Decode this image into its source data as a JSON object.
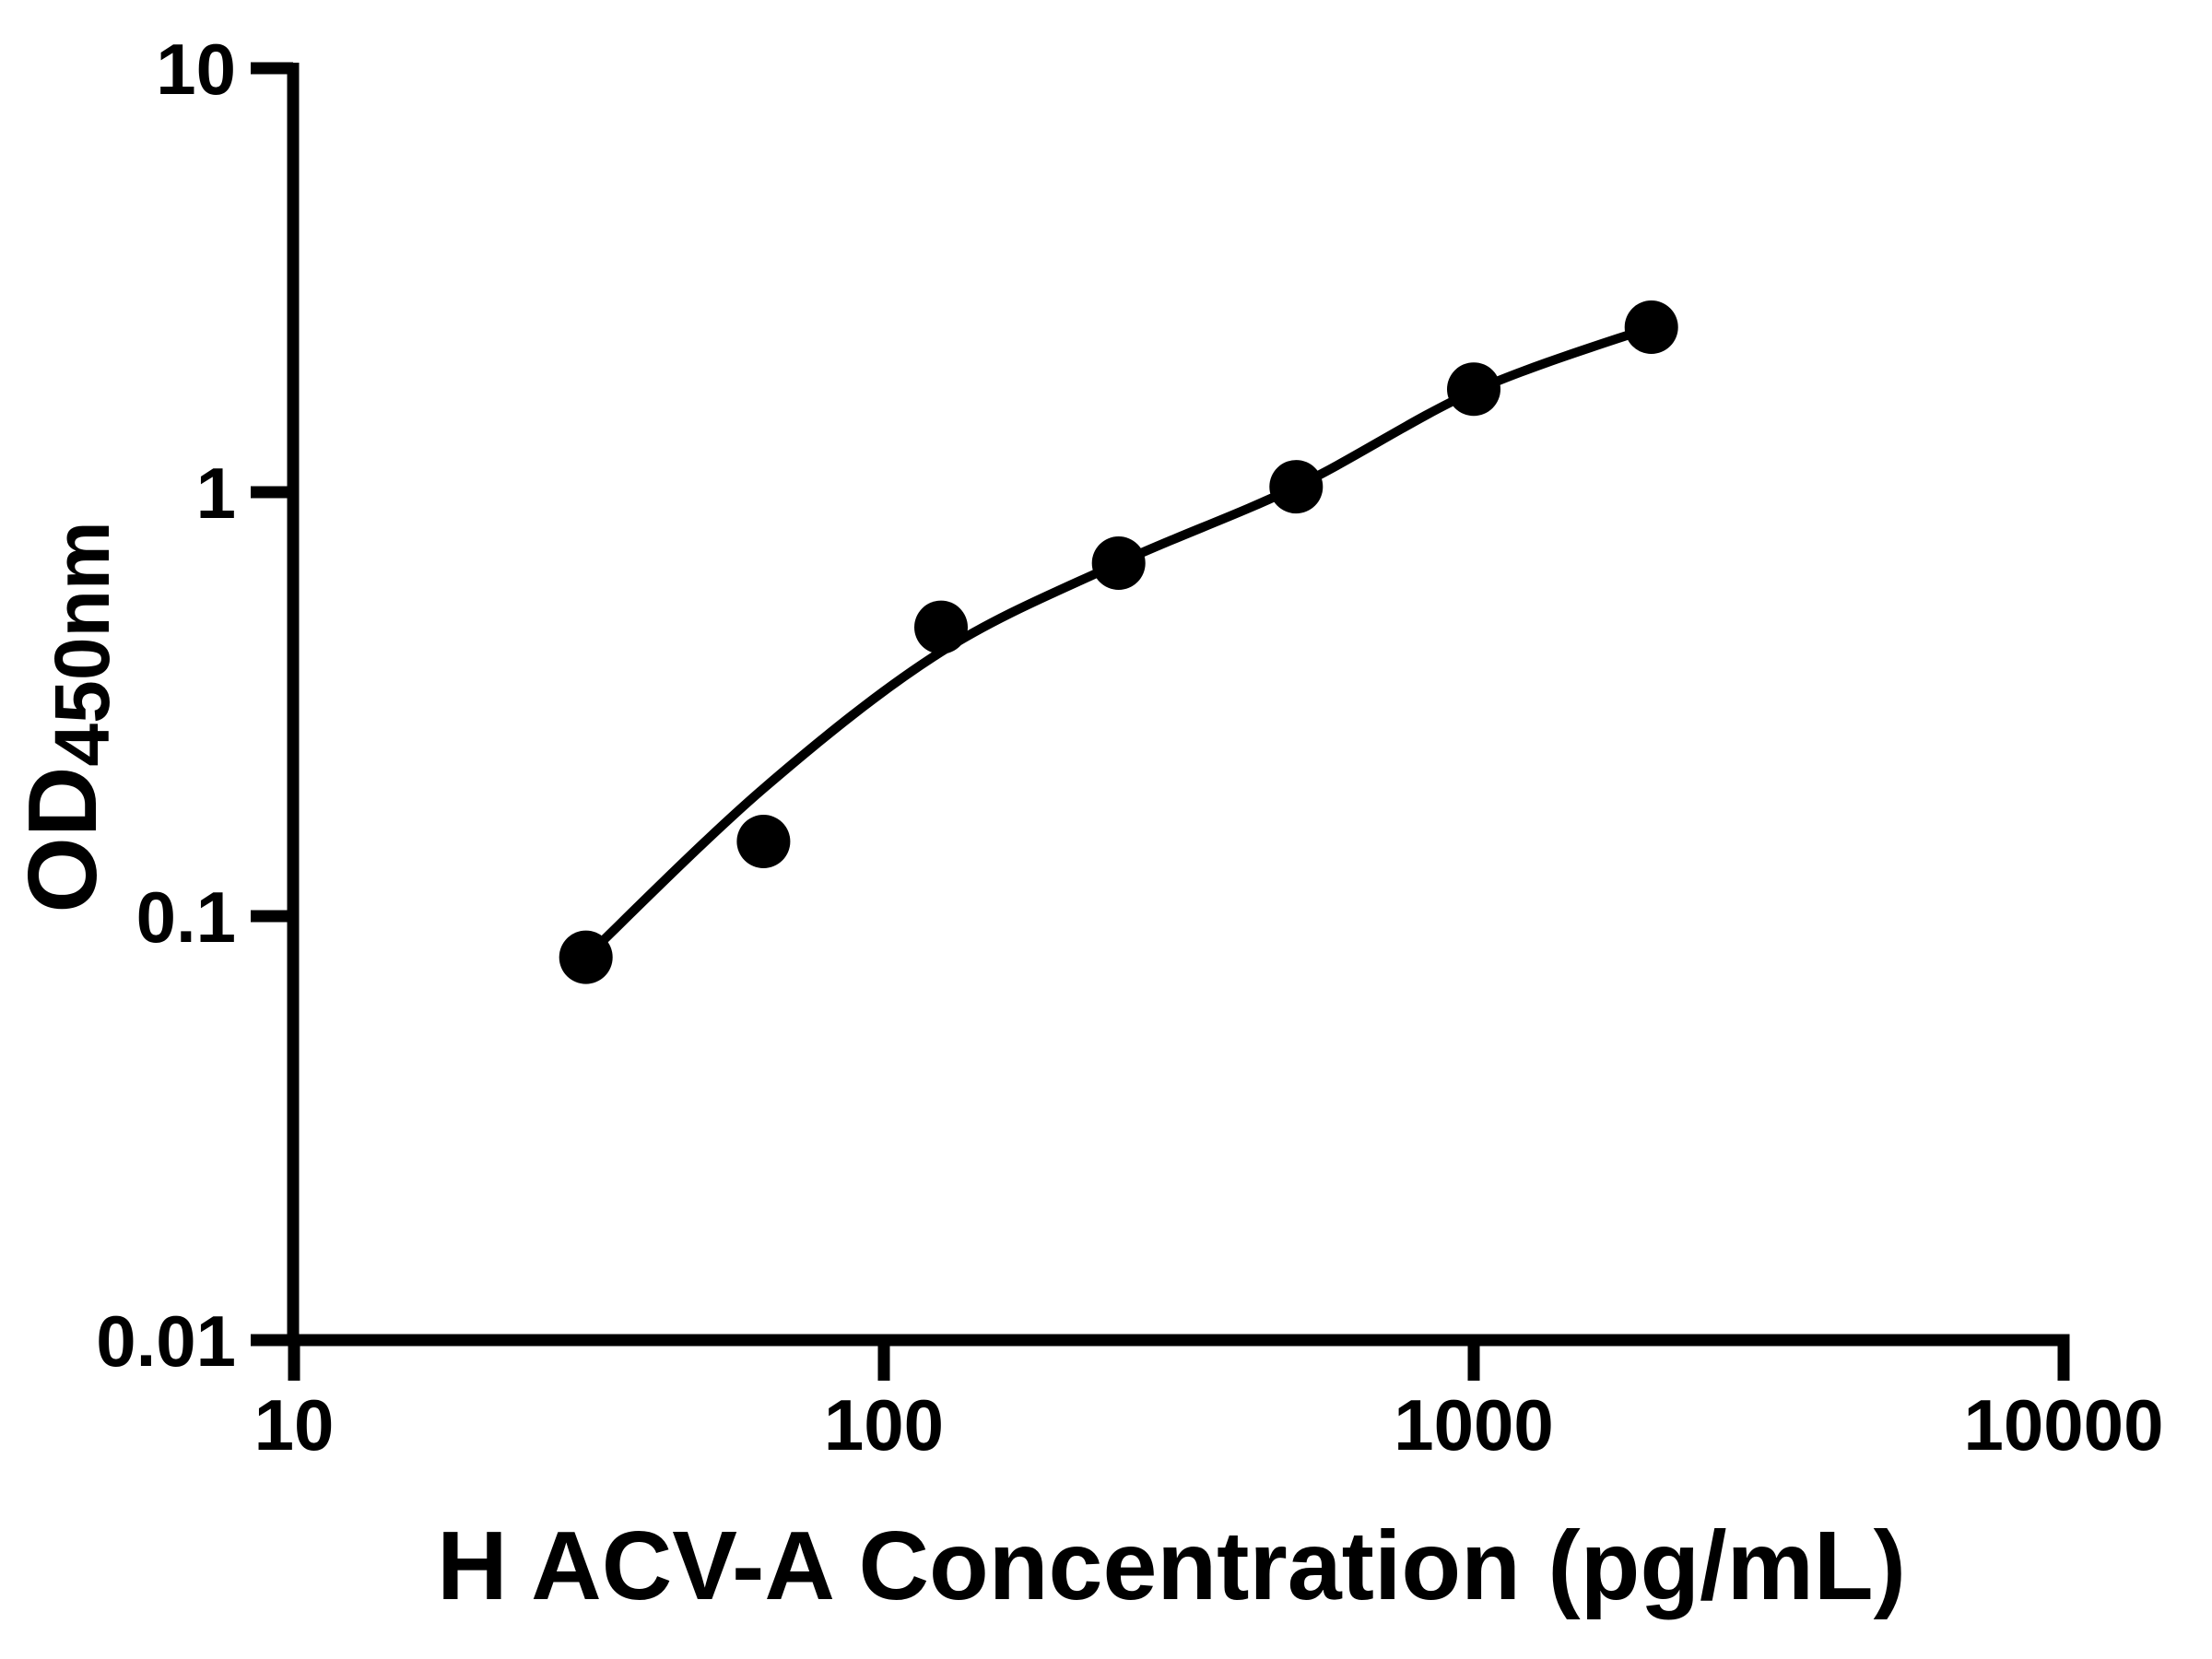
{
  "page": {
    "background_color": "#ffffff",
    "foreground_color": "#000000"
  },
  "chart_data": {
    "type": "scatter",
    "title": "",
    "xlabel": "H ACV-A Concentration (pg/mL)",
    "ylabel_main": "OD",
    "ylabel_sub": "450nm",
    "x_scale": "log",
    "y_scale": "log",
    "xlim": [
      10,
      10000
    ],
    "ylim": [
      0.01,
      10
    ],
    "grid": false,
    "legend_position": "none",
    "x_ticks": [
      {
        "value": 10,
        "label": "10"
      },
      {
        "value": 100,
        "label": "100"
      },
      {
        "value": 1000,
        "label": "1000"
      },
      {
        "value": 10000,
        "label": "10000"
      }
    ],
    "y_ticks": [
      {
        "value": 0.01,
        "label": "0.01"
      },
      {
        "value": 0.1,
        "label": "0.1"
      },
      {
        "value": 1,
        "label": "1"
      },
      {
        "value": 10,
        "label": "10"
      }
    ],
    "series": [
      {
        "name": "standard-points",
        "marker": "circle",
        "color": "#000000",
        "x": [
          31.25,
          62.5,
          125,
          250,
          500,
          1000,
          2000
        ],
        "y": [
          0.08,
          0.15,
          0.48,
          0.68,
          1.03,
          1.75,
          2.45
        ]
      }
    ],
    "fit_curve": {
      "name": "4pl-fit",
      "color": "#000000",
      "x": [
        31.25,
        62.5,
        125,
        250,
        500,
        1000,
        2000
      ],
      "y": [
        0.08,
        0.2,
        0.42,
        0.68,
        1.03,
        1.73,
        2.45
      ]
    }
  }
}
